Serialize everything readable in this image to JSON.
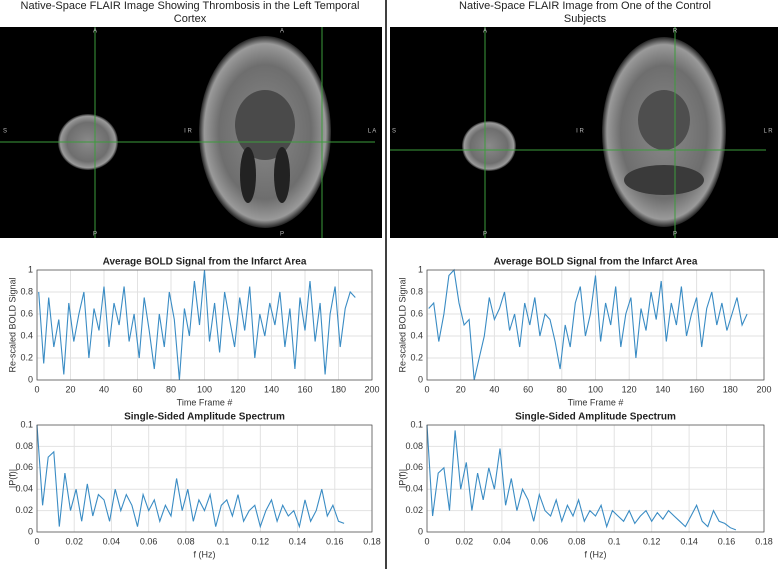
{
  "panels": [
    {
      "title": "Native-Space FLAIR Image Showing Thrombosis in the Left Temporal Cortex",
      "labels": [
        "A",
        "A",
        "S",
        "I R",
        "L A",
        "P",
        "P"
      ]
    },
    {
      "title": "Native-Space FLAIR Image from One of the Control Subjects",
      "labels": [
        "A",
        "R",
        "S",
        "I R",
        "L R",
        "P",
        "P"
      ]
    }
  ],
  "chart_data": [
    {
      "type": "line",
      "title": "Average BOLD Signal from the Infarct Area",
      "xlabel": "Time Frame #",
      "ylabel": "Re-scaled BOLD Signal",
      "color": "#3a8cc4",
      "grid": true,
      "x": [
        1,
        4,
        7,
        10,
        13,
        16,
        19,
        22,
        25,
        28,
        31,
        34,
        37,
        40,
        43,
        46,
        49,
        52,
        55,
        58,
        61,
        64,
        67,
        70,
        73,
        76,
        79,
        82,
        85,
        88,
        91,
        94,
        97,
        100,
        103,
        106,
        109,
        112,
        115,
        118,
        121,
        124,
        127,
        130,
        133,
        136,
        139,
        142,
        145,
        148,
        151,
        154,
        157,
        160,
        163,
        166,
        169,
        172,
        175,
        178,
        181,
        184,
        187,
        190
      ],
      "values": [
        0.8,
        0.15,
        0.75,
        0.3,
        0.55,
        0.05,
        0.7,
        0.35,
        0.6,
        0.8,
        0.2,
        0.65,
        0.45,
        0.85,
        0.3,
        0.7,
        0.5,
        0.85,
        0.35,
        0.6,
        0.2,
        0.75,
        0.45,
        0.1,
        0.6,
        0.3,
        0.8,
        0.55,
        0.0,
        0.65,
        0.4,
        0.9,
        0.5,
        1.0,
        0.35,
        0.7,
        0.25,
        0.8,
        0.55,
        0.3,
        0.75,
        0.45,
        0.85,
        0.2,
        0.6,
        0.4,
        0.7,
        0.5,
        0.8,
        0.3,
        0.65,
        0.1,
        0.75,
        0.45,
        0.9,
        0.35,
        0.7,
        0.05,
        0.6,
        0.85,
        0.3,
        0.65,
        0.8,
        0.75
      ],
      "xlim": [
        0,
        200
      ],
      "xticks": [
        0,
        20,
        40,
        60,
        80,
        100,
        120,
        140,
        160,
        180,
        200
      ],
      "ylim": [
        0,
        1
      ],
      "yticks": [
        0,
        0.2,
        0.4,
        0.6,
        0.8,
        1
      ]
    },
    {
      "type": "line",
      "title": "Average BOLD Signal from the Infarct Area",
      "xlabel": "Time Frame #",
      "ylabel": "Re-scaled BOLD Signal",
      "color": "#3a8cc4",
      "grid": true,
      "x": [
        1,
        4,
        7,
        10,
        13,
        16,
        19,
        22,
        25,
        28,
        31,
        34,
        37,
        40,
        43,
        46,
        49,
        52,
        55,
        58,
        61,
        64,
        67,
        70,
        73,
        76,
        79,
        82,
        85,
        88,
        91,
        94,
        97,
        100,
        103,
        106,
        109,
        112,
        115,
        118,
        121,
        124,
        127,
        130,
        133,
        136,
        139,
        142,
        145,
        148,
        151,
        154,
        157,
        160,
        163,
        166,
        169,
        172,
        175,
        178,
        181,
        184,
        187,
        190
      ],
      "values": [
        0.65,
        0.7,
        0.35,
        0.6,
        0.95,
        1.0,
        0.7,
        0.5,
        0.55,
        0.0,
        0.2,
        0.4,
        0.75,
        0.55,
        0.65,
        0.8,
        0.45,
        0.6,
        0.3,
        0.7,
        0.5,
        0.75,
        0.4,
        0.6,
        0.55,
        0.35,
        0.1,
        0.5,
        0.3,
        0.7,
        0.85,
        0.4,
        0.6,
        0.95,
        0.35,
        0.7,
        0.5,
        0.85,
        0.3,
        0.6,
        0.75,
        0.2,
        0.65,
        0.45,
        0.8,
        0.55,
        0.9,
        0.35,
        0.7,
        0.5,
        0.85,
        0.4,
        0.6,
        0.75,
        0.3,
        0.65,
        0.8,
        0.5,
        0.7,
        0.45,
        0.6,
        0.75,
        0.5,
        0.6
      ],
      "xlim": [
        0,
        200
      ],
      "xticks": [
        0,
        20,
        40,
        60,
        80,
        100,
        120,
        140,
        160,
        180,
        200
      ],
      "ylim": [
        0,
        1
      ],
      "yticks": [
        0,
        0.2,
        0.4,
        0.6,
        0.8,
        1
      ]
    },
    {
      "type": "line",
      "title": "Single-Sided Amplitude Spectrum",
      "xlabel": "f (Hz)",
      "ylabel": "|P(f)|",
      "color": "#3a8cc4",
      "grid": true,
      "x": [
        0,
        0.003,
        0.006,
        0.009,
        0.012,
        0.015,
        0.018,
        0.021,
        0.024,
        0.027,
        0.03,
        0.033,
        0.036,
        0.039,
        0.042,
        0.045,
        0.048,
        0.051,
        0.054,
        0.057,
        0.06,
        0.063,
        0.066,
        0.069,
        0.072,
        0.075,
        0.078,
        0.081,
        0.084,
        0.087,
        0.09,
        0.093,
        0.096,
        0.099,
        0.102,
        0.105,
        0.108,
        0.111,
        0.114,
        0.117,
        0.12,
        0.123,
        0.126,
        0.129,
        0.132,
        0.135,
        0.138,
        0.141,
        0.144,
        0.147,
        0.15,
        0.153,
        0.156,
        0.159,
        0.162,
        0.165
      ],
      "values": [
        0.1,
        0.025,
        0.07,
        0.075,
        0.005,
        0.055,
        0.02,
        0.04,
        0.01,
        0.045,
        0.015,
        0.035,
        0.03,
        0.01,
        0.04,
        0.02,
        0.035,
        0.025,
        0.005,
        0.035,
        0.02,
        0.03,
        0.01,
        0.025,
        0.015,
        0.05,
        0.02,
        0.04,
        0.01,
        0.03,
        0.02,
        0.035,
        0.005,
        0.025,
        0.03,
        0.015,
        0.035,
        0.01,
        0.02,
        0.025,
        0.005,
        0.02,
        0.03,
        0.01,
        0.025,
        0.015,
        0.02,
        0.005,
        0.03,
        0.01,
        0.02,
        0.04,
        0.015,
        0.025,
        0.01,
        0.008
      ],
      "xlim": [
        0,
        0.18
      ],
      "xticks": [
        0,
        0.02,
        0.04,
        0.06,
        0.08,
        0.1,
        0.12,
        0.14,
        0.16,
        0.18
      ],
      "ylim": [
        0,
        0.1
      ],
      "yticks": [
        0,
        0.02,
        0.04,
        0.06,
        0.08,
        0.1
      ]
    },
    {
      "type": "line",
      "title": "Single-Sided Amplitude Spectrum",
      "xlabel": "f (Hz)",
      "ylabel": "|P(f)|",
      "color": "#3a8cc4",
      "grid": true,
      "x": [
        0,
        0.003,
        0.006,
        0.009,
        0.012,
        0.015,
        0.018,
        0.021,
        0.024,
        0.027,
        0.03,
        0.033,
        0.036,
        0.039,
        0.042,
        0.045,
        0.048,
        0.051,
        0.054,
        0.057,
        0.06,
        0.063,
        0.066,
        0.069,
        0.072,
        0.075,
        0.078,
        0.081,
        0.084,
        0.087,
        0.09,
        0.093,
        0.096,
        0.099,
        0.102,
        0.105,
        0.108,
        0.111,
        0.114,
        0.117,
        0.12,
        0.123,
        0.126,
        0.129,
        0.132,
        0.135,
        0.138,
        0.141,
        0.144,
        0.147,
        0.15,
        0.153,
        0.156,
        0.159,
        0.162,
        0.165
      ],
      "values": [
        0.1,
        0.015,
        0.055,
        0.06,
        0.02,
        0.095,
        0.04,
        0.065,
        0.02,
        0.055,
        0.03,
        0.06,
        0.04,
        0.078,
        0.025,
        0.05,
        0.02,
        0.04,
        0.03,
        0.01,
        0.035,
        0.02,
        0.015,
        0.03,
        0.01,
        0.025,
        0.015,
        0.03,
        0.01,
        0.02,
        0.015,
        0.025,
        0.005,
        0.02,
        0.015,
        0.01,
        0.02,
        0.008,
        0.015,
        0.02,
        0.01,
        0.018,
        0.012,
        0.02,
        0.015,
        0.01,
        0.005,
        0.015,
        0.025,
        0.01,
        0.005,
        0.02,
        0.01,
        0.008,
        0.004,
        0.002
      ],
      "xlim": [
        0,
        0.18
      ],
      "xticks": [
        0,
        0.02,
        0.04,
        0.06,
        0.08,
        0.1,
        0.12,
        0.14,
        0.16,
        0.18
      ],
      "ylim": [
        0,
        0.1
      ],
      "yticks": [
        0,
        0.02,
        0.04,
        0.06,
        0.08,
        0.1
      ]
    }
  ]
}
